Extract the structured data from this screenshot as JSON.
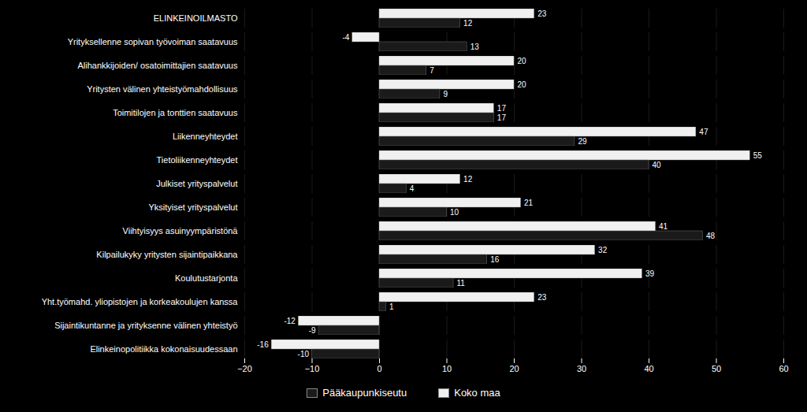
{
  "chart_data": {
    "type": "bar",
    "orientation": "horizontal",
    "categories": [
      "ELINKEINOILMASTO",
      "Yrityksellenne sopivan työvoiman saatavuus",
      "Alihankkijoiden/ osatoimittajien saatavuus",
      "Yritysten välinen yhteistyömahdollisuus",
      "Toimitilojen ja tonttien saatavuus",
      "Liikenneyhteydet",
      "Tietoliikenneyhteydet",
      "Julkiset yrityspalvelut",
      "Yksityiset yrityspalvelut",
      "Viihtyisyys asuinyympäristönä",
      "Kilpailukyky yritysten sijaintipaikkana",
      "Koulutustarjonta",
      "Yht.työmahd. yliopistojen ja korkeakoulujen kanssa",
      "Sijaintikuntanne ja yrityksenne välinen yhteistyö",
      "Elinkeinopolitiikka kokonaisuudessaan"
    ],
    "series": [
      {
        "name": "Koko maa",
        "color": "#f0f0f0",
        "values": [
          23,
          -4,
          20,
          20,
          17,
          47,
          55,
          12,
          21,
          41,
          32,
          39,
          23,
          -12,
          -16
        ]
      },
      {
        "name": "Pääkaupunkiseutu",
        "color": "#1a1a1a",
        "values": [
          12,
          13,
          7,
          9,
          17,
          29,
          40,
          4,
          10,
          48,
          16,
          11,
          1,
          -9,
          -10
        ]
      }
    ],
    "xlim": [
      -20,
      60
    ],
    "xticks": [
      -20,
      -10,
      0,
      10,
      20,
      30,
      40,
      50,
      60
    ],
    "grid": true,
    "legend": "bottom",
    "data_labels": true
  }
}
